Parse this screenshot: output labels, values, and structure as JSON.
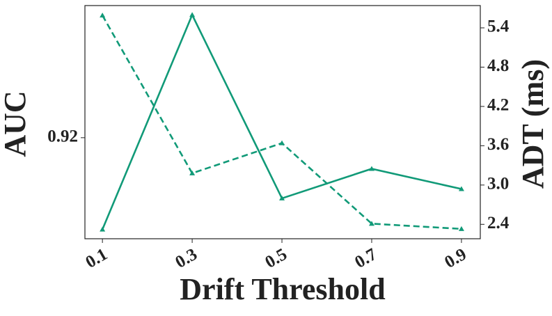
{
  "chart_data": {
    "type": "line",
    "xlabel": "Drift Threshold",
    "ylabel": "AUC",
    "y2label": "ADT (ms)",
    "x": [
      0.1,
      0.3,
      0.5,
      0.7,
      0.9
    ],
    "xlim": [
      0.061,
      0.942
    ],
    "xticks": [
      0.1,
      0.3,
      0.5,
      0.7,
      0.9
    ],
    "ylim": [
      0.9135,
      0.9285
    ],
    "yticks": [
      0.92
    ],
    "y2lim": [
      2.18,
      5.74
    ],
    "y2ticks": [
      2.4,
      {
        "value": 3,
        "label": "3.0"
      },
      3.6,
      4.2,
      4.8,
      5.4
    ],
    "series": [
      {
        "color": "#119a78",
        "linestyle": "solid",
        "values": [
          0.9141,
          0.9279,
          0.9161,
          0.918,
          0.9167
        ]
      },
      {
        "color": "#119a78",
        "linestyle": "dashed",
        "axis": "y2",
        "values": [
          5.59,
          3.18,
          3.64,
          2.41,
          2.33
        ]
      }
    ]
  }
}
